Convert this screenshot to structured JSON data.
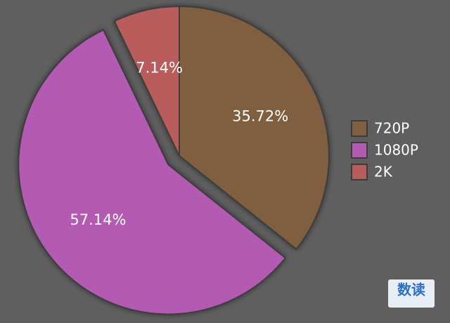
{
  "chart_data": {
    "type": "pie",
    "categories": [
      "720P",
      "1080P",
      "2K"
    ],
    "values": [
      35.72,
      57.14,
      7.14
    ],
    "value_labels": [
      "35.72%",
      "57.14%",
      "7.14%"
    ],
    "colors": [
      "#7f5f40",
      "#b35ab3",
      "#b85c5c"
    ],
    "exploded": [
      false,
      true,
      false
    ],
    "legend": "right",
    "watermark": "数读"
  }
}
